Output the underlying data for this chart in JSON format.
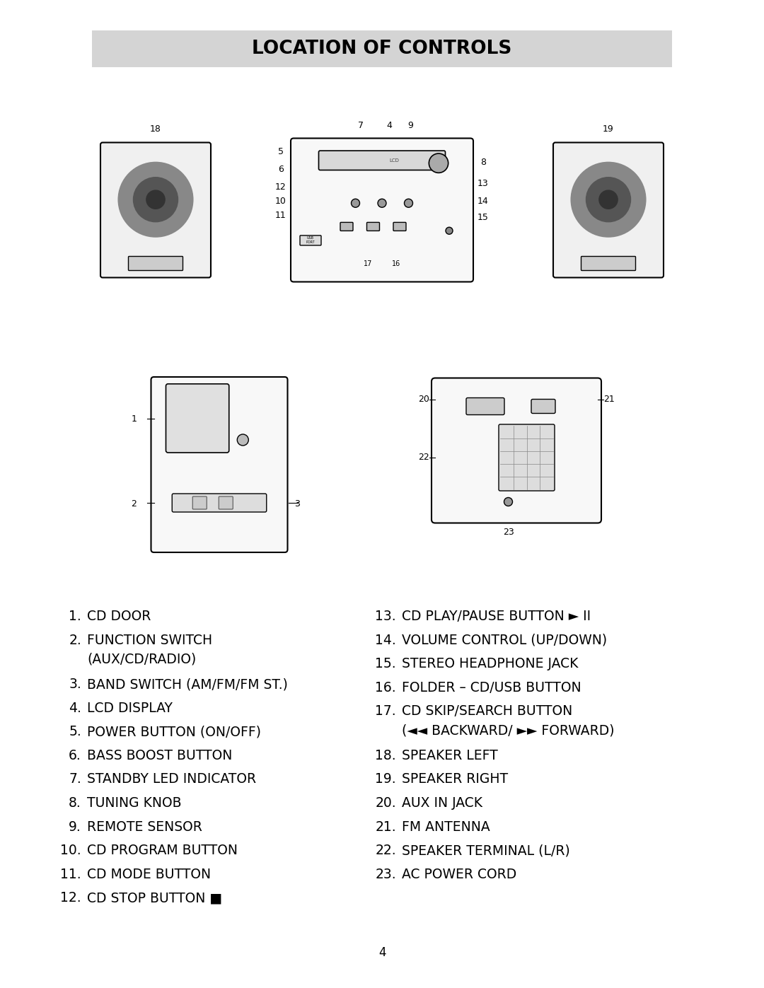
{
  "title": "LOCATION OF CONTROLS",
  "title_bg": "#d4d4d4",
  "background": "#ffffff",
  "page_number": "4",
  "left_items": [
    {
      "num": "1.",
      "text": "CD DOOR"
    },
    {
      "num": "2.",
      "text": "FUNCTION SWITCH\n(AUX/CD/RADIO)"
    },
    {
      "num": "3.",
      "text": "BAND SWITCH (AM/FM/FM ST.)"
    },
    {
      "num": "4.",
      "text": "LCD DISPLAY"
    },
    {
      "num": "5.",
      "text": "POWER BUTTON (ON/OFF)"
    },
    {
      "num": "6.",
      "text": "BASS BOOST BUTTON"
    },
    {
      "num": "7.",
      "text": "STANDBY LED INDICATOR"
    },
    {
      "num": "8.",
      "text": "TUNING KNOB"
    },
    {
      "num": "9.",
      "text": "REMOTE SENSOR"
    },
    {
      "num": "10.",
      "text": "CD PROGRAM BUTTON"
    },
    {
      "num": "11.",
      "text": "CD MODE BUTTON"
    },
    {
      "num": "12.",
      "text": "CD STOP BUTTON ■"
    }
  ],
  "right_items": [
    {
      "num": "13.",
      "text": "CD PLAY/PAUSE BUTTON ► II"
    },
    {
      "num": "14.",
      "text": "VOLUME CONTROL (UP/DOWN)"
    },
    {
      "num": "15.",
      "text": "STEREO HEADPHONE JACK"
    },
    {
      "num": "16.",
      "text": "FOLDER – CD/USB BUTTON"
    },
    {
      "num": "17.",
      "text": "CD SKIP/SEARCH BUTTON\n(◄◄ BACKWARD/ ►► FORWARD)"
    },
    {
      "num": "18.",
      "text": "SPEAKER LEFT"
    },
    {
      "num": "19.",
      "text": "SPEAKER RIGHT"
    },
    {
      "num": "20.",
      "text": "AUX IN JACK"
    },
    {
      "num": "21.",
      "text": "FM ANTENNA"
    },
    {
      "num": "22.",
      "text": "SPEAKER TERMINAL (L/R)"
    },
    {
      "num": "23.",
      "text": "AC POWER CORD"
    }
  ]
}
